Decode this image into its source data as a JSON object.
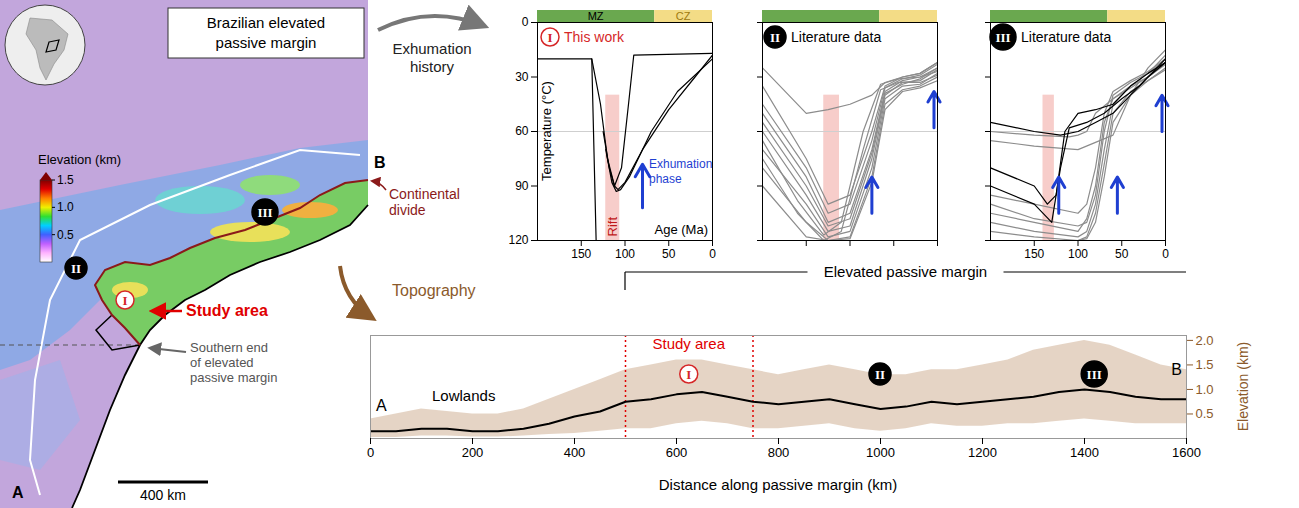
{
  "map": {
    "title": "Brazilian elevated passive margin",
    "colorbar": {
      "label": "Elevation (km)",
      "lim": [
        0,
        1.5
      ],
      "ticks": [
        0.5,
        {
          "value": 1,
          "label": "1.0"
        },
        1.5
      ]
    },
    "labels": {
      "continental_divide": "Continental divide",
      "study_area": "Study area",
      "southern_end": "Southern end of elevated passive margin",
      "scale_bar": "400 km",
      "start": "A",
      "end": "B"
    },
    "regions": [
      {
        "label": "I",
        "marker": "open",
        "color": "#d62728"
      },
      {
        "label": "II",
        "marker": "filled",
        "color": "#000000"
      },
      {
        "label": "III",
        "marker": "filled",
        "color": "#000000"
      }
    ]
  },
  "links": {
    "exhumation": "Exhumation history",
    "topography": "Topography"
  },
  "chart_data": [
    {
      "type": "line",
      "panel": "I",
      "title": "This work",
      "marker": "open",
      "color": "#d62728",
      "xlabel": "Age (Ma)",
      "ylabel": "Temperature (°C)",
      "xlim": [
        200,
        0
      ],
      "xticks": [
        150,
        100,
        50,
        0
      ],
      "ylim": [
        0,
        120
      ],
      "yticks": [
        0,
        30,
        60,
        90,
        120
      ],
      "reference_temperature": 60,
      "periods": [
        {
          "label": "MZ",
          "start": 252,
          "end": 66,
          "color": "#6aa84f"
        },
        {
          "label": "CZ",
          "start": 66,
          "end": 0,
          "color": "#f3dc86"
        }
      ],
      "rift": {
        "label": "Rift",
        "x1": 122,
        "x2": 106,
        "y1": 40,
        "y2": 120,
        "color": "#f7cdca"
      },
      "exhumation": {
        "label": "Exhumation phase",
        "color": "#1f3fd1",
        "arrows": [
          {
            "age": 80,
            "from": 102,
            "to": 78
          }
        ]
      },
      "series": [
        {
          "color": "#000000",
          "x": [
            200,
            138,
            133
          ],
          "values": [
            20,
            20,
            120
          ]
        },
        {
          "color": "#000000",
          "x": [
            138,
            128,
            120,
            112,
            104,
            96,
            90,
            0
          ],
          "values": [
            20,
            45,
            75,
            90,
            80,
            45,
            18,
            17
          ]
        },
        {
          "color": "#000000",
          "x": [
            125,
            118,
            112,
            108,
            100,
            80,
            50,
            20,
            0
          ],
          "values": [
            60,
            80,
            90,
            92,
            88,
            70,
            48,
            30,
            18
          ]
        },
        {
          "color": "#000000",
          "x": [
            122,
            115,
            110,
            105,
            95,
            70,
            40,
            0
          ],
          "values": [
            70,
            88,
            93,
            92,
            85,
            60,
            38,
            20
          ]
        }
      ]
    },
    {
      "type": "line",
      "panel": "II",
      "title": "Literature data",
      "marker": "filled",
      "color": "#000000",
      "tick_labels": false,
      "xlim": [
        200,
        0
      ],
      "xticks": [
        150,
        100,
        50,
        0
      ],
      "ylim": [
        0,
        120
      ],
      "yticks": [
        0,
        30,
        60,
        90,
        120
      ],
      "reference_temperature": 60,
      "periods": [
        {
          "start": 252,
          "end": 66,
          "color": "#6aa84f"
        },
        {
          "start": 66,
          "end": 0,
          "color": "#f3dc86"
        }
      ],
      "rift": {
        "x1": 130,
        "x2": 112,
        "y1": 40,
        "y2": 120,
        "color": "#f7cdca"
      },
      "exhumation": {
        "color": "#1f3fd1",
        "arrows": [
          {
            "age": 75,
            "from": 105,
            "to": 85
          },
          {
            "age": 4,
            "from": 58,
            "to": 38
          }
        ]
      },
      "series": [
        {
          "color": "#8c8c8c",
          "x": [
            200,
            150,
            125,
            100,
            75,
            60,
            40,
            20,
            0
          ],
          "values": [
            35,
            75,
            100,
            95,
            60,
            35,
            30,
            28,
            22
          ]
        },
        {
          "color": "#8c8c8c",
          "x": [
            200,
            150,
            125,
            100,
            75,
            60,
            40,
            20,
            0
          ],
          "values": [
            50,
            85,
            110,
            105,
            70,
            38,
            32,
            30,
            25
          ]
        },
        {
          "color": "#8c8c8c",
          "x": [
            200,
            150,
            125,
            100,
            75,
            60,
            40,
            20,
            0
          ],
          "values": [
            60,
            95,
            115,
            112,
            75,
            40,
            33,
            32,
            26
          ]
        },
        {
          "color": "#8c8c8c",
          "x": [
            200,
            150,
            125,
            100,
            75,
            60,
            40,
            20,
            0
          ],
          "values": [
            70,
            100,
            118,
            115,
            80,
            42,
            35,
            34,
            28
          ]
        },
        {
          "color": "#8c8c8c",
          "x": [
            200,
            150,
            125,
            100,
            75,
            60,
            40,
            20,
            0
          ],
          "values": [
            25,
            50,
            48,
            45,
            40,
            33,
            30,
            28,
            22
          ]
        },
        {
          "color": "#8c8c8c",
          "x": [
            200,
            150,
            125,
            100,
            75,
            60,
            40,
            20,
            0
          ],
          "values": [
            80,
            110,
            120,
            118,
            85,
            45,
            37,
            35,
            30
          ]
        },
        {
          "color": "#8c8c8c",
          "x": [
            200,
            150,
            125,
            100,
            75,
            60,
            40,
            20,
            0
          ],
          "values": [
            45,
            80,
            105,
            100,
            65,
            36,
            31,
            29,
            23
          ]
        },
        {
          "color": "#8c8c8c",
          "x": [
            200,
            150,
            125,
            100,
            75,
            60,
            40,
            20,
            0
          ],
          "values": [
            90,
            118,
            120,
            119,
            88,
            48,
            38,
            36,
            32
          ]
        },
        {
          "color": "#8c8c8c",
          "x": [
            200,
            150,
            125,
            100,
            75,
            60,
            40,
            20,
            0
          ],
          "values": [
            55,
            90,
            112,
            108,
            72,
            39,
            34,
            31,
            25
          ]
        },
        {
          "color": "#8c8c8c",
          "x": [
            200,
            160,
            130,
            110,
            85,
            65,
            45,
            20,
            0
          ],
          "values": [
            65,
            98,
            117,
            110,
            60,
            34,
            31,
            30,
            27
          ]
        },
        {
          "color": "#8c8c8c",
          "x": [
            200,
            160,
            130,
            110,
            85,
            65,
            45,
            20,
            0
          ],
          "values": [
            75,
            105,
            120,
            115,
            70,
            37,
            33,
            33,
            29
          ]
        }
      ]
    },
    {
      "type": "line",
      "panel": "III",
      "title": "Literature data",
      "marker": "filled",
      "color": "#000000",
      "tick_labels": "x",
      "xlim": [
        200,
        0
      ],
      "xticks": [
        150,
        100,
        50,
        0
      ],
      "ylim": [
        0,
        120
      ],
      "yticks": [
        0,
        30,
        60,
        90,
        120
      ],
      "reference_temperature": 60,
      "periods": [
        {
          "start": 252,
          "end": 66,
          "color": "#6aa84f"
        },
        {
          "start": 66,
          "end": 0,
          "color": "#f3dc86"
        }
      ],
      "rift": {
        "x1": 140,
        "x2": 127,
        "y1": 40,
        "y2": 120,
        "color": "#f7cdca"
      },
      "exhumation": {
        "color": "#1f3fd1",
        "arrows": [
          {
            "age": 122,
            "from": 105,
            "to": 85
          },
          {
            "age": 55,
            "from": 105,
            "to": 85
          },
          {
            "age": 4,
            "from": 60,
            "to": 40
          }
        ]
      },
      "series": [
        {
          "color": "#8c8c8c",
          "x": [
            200,
            150,
            100,
            90,
            80,
            70,
            60,
            40,
            20,
            0
          ],
          "values": [
            100,
            108,
            112,
            110,
            95,
            60,
            40,
            33,
            28,
            20
          ]
        },
        {
          "color": "#8c8c8c",
          "x": [
            200,
            150,
            100,
            90,
            80,
            70,
            60,
            40,
            20,
            0
          ],
          "values": [
            110,
            115,
            118,
            115,
            100,
            70,
            45,
            35,
            30,
            22
          ]
        },
        {
          "color": "#8c8c8c",
          "x": [
            200,
            150,
            100,
            90,
            80,
            70,
            60,
            40,
            20,
            0
          ],
          "values": [
            95,
            100,
            105,
            100,
            80,
            50,
            38,
            32,
            27,
            20
          ]
        },
        {
          "color": "#8c8c8c",
          "x": [
            200,
            150,
            100,
            90,
            80,
            70,
            60,
            40,
            20,
            0
          ],
          "values": [
            115,
            118,
            120,
            118,
            105,
            78,
            50,
            38,
            32,
            25
          ]
        },
        {
          "color": "#8c8c8c",
          "x": [
            200,
            150,
            100,
            90,
            80,
            70,
            60,
            40,
            20,
            0
          ],
          "values": [
            105,
            110,
            115,
            108,
            90,
            55,
            42,
            36,
            30,
            23
          ]
        },
        {
          "color": "#8c8c8c",
          "x": [
            200,
            150,
            110,
            100,
            90,
            80,
            60,
            40,
            20,
            0
          ],
          "values": [
            60,
            62,
            63,
            62,
            60,
            50,
            42,
            35,
            28,
            18
          ]
        },
        {
          "color": "#8c8c8c",
          "x": [
            200,
            150,
            100,
            90,
            80,
            70,
            60,
            40,
            20,
            0
          ],
          "values": [
            120,
            120,
            120,
            119,
            110,
            85,
            55,
            40,
            32,
            26
          ]
        },
        {
          "color": "#8c8c8c",
          "x": [
            200,
            150,
            100,
            60,
            40,
            20,
            0
          ],
          "values": [
            65,
            68,
            70,
            62,
            40,
            25,
            15
          ]
        },
        {
          "color": "#000000",
          "x": [
            200,
            150,
            135,
            125,
            115,
            100,
            80,
            60,
            40,
            20,
            0
          ],
          "values": [
            80,
            90,
            100,
            95,
            60,
            50,
            48,
            45,
            35,
            28,
            22
          ]
        },
        {
          "color": "#000000",
          "x": [
            200,
            150,
            130,
            120,
            110,
            90,
            70,
            50,
            30,
            0
          ],
          "values": [
            90,
            100,
            110,
            80,
            58,
            55,
            50,
            42,
            35,
            20
          ]
        },
        {
          "color": "#000000",
          "x": [
            200,
            150,
            120,
            100,
            80,
            60,
            40,
            20,
            0
          ],
          "values": [
            55,
            60,
            62,
            60,
            55,
            50,
            40,
            30,
            22
          ]
        }
      ]
    },
    {
      "type": "line",
      "xlabel": "Distance along passive margin (km)",
      "ylabel": "Elevation (km)",
      "xlim": [
        0,
        1600
      ],
      "xticks": [
        0,
        200,
        400,
        600,
        800,
        1000,
        1200,
        1400,
        1600
      ],
      "ylim": [
        0,
        2.1
      ],
      "yticks": [
        0.5,
        {
          "value": 1,
          "label": "1.0"
        },
        1.5,
        {
          "value": 2,
          "label": "2.0"
        }
      ],
      "x": [
        0,
        50,
        100,
        150,
        200,
        250,
        300,
        350,
        400,
        450,
        500,
        550,
        600,
        650,
        700,
        750,
        800,
        850,
        900,
        950,
        1000,
        1050,
        1100,
        1150,
        1200,
        1250,
        1300,
        1350,
        1400,
        1450,
        1500,
        1550,
        1600
      ],
      "series": [
        {
          "color": "#000000",
          "values": [
            0.15,
            0.15,
            0.2,
            0.2,
            0.15,
            0.15,
            0.2,
            0.3,
            0.45,
            0.55,
            0.75,
            0.8,
            0.9,
            0.95,
            0.85,
            0.75,
            0.7,
            0.75,
            0.8,
            0.7,
            0.6,
            0.65,
            0.75,
            0.7,
            0.75,
            0.8,
            0.85,
            0.95,
            1.0,
            0.95,
            0.85,
            0.8,
            0.8
          ]
        }
      ],
      "swath": {
        "color": "#b5855a",
        "min": [
          0.02,
          0.02,
          0.05,
          0.05,
          0.03,
          0.03,
          0.05,
          0.08,
          0.1,
          0.15,
          0.2,
          0.2,
          0.3,
          0.35,
          0.3,
          0.2,
          0.2,
          0.25,
          0.3,
          0.2,
          0.15,
          0.2,
          0.3,
          0.25,
          0.25,
          0.3,
          0.3,
          0.35,
          0.4,
          0.35,
          0.3,
          0.3,
          0.3
        ],
        "max": [
          0.4,
          0.5,
          0.6,
          0.55,
          0.5,
          0.5,
          0.6,
          0.8,
          1.0,
          1.2,
          1.4,
          1.5,
          1.6,
          1.6,
          1.5,
          1.4,
          1.3,
          1.4,
          1.5,
          1.4,
          1.3,
          1.3,
          1.4,
          1.4,
          1.5,
          1.6,
          1.8,
          1.9,
          2.0,
          1.9,
          1.7,
          1.5,
          1.4
        ]
      },
      "start_label": "A",
      "end_label": "B",
      "lowlands": "Lowlands",
      "study_area": {
        "label": "Study area",
        "start": 500,
        "end": 750,
        "color": "#e00000"
      },
      "elevated_margin": {
        "label": "Elevated passive margin",
        "start": 500,
        "end": 1600
      },
      "regions": [
        {
          "label": "I",
          "x": 625,
          "marker": "open",
          "color": "#d62728"
        },
        {
          "label": "II",
          "x": 1000,
          "marker": "filled",
          "color": "#000000"
        },
        {
          "label": "III",
          "x": 1420,
          "marker": "filled",
          "color": "#000000"
        }
      ]
    }
  ]
}
